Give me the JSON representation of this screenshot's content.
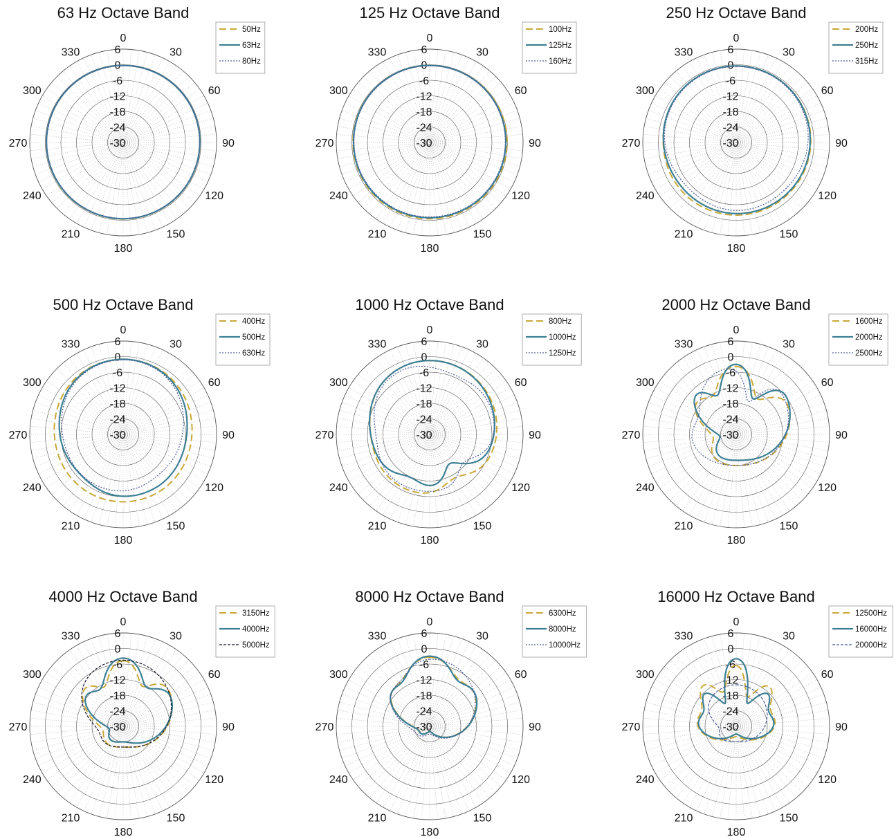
{
  "chart_data": [
    {
      "type": "polar",
      "title": "63 Hz Octave Band",
      "rlim": [
        -30,
        6
      ],
      "rticks": [
        "6",
        "0",
        "-6",
        "-12",
        "-18",
        "-24",
        "-30"
      ],
      "theta_ticks": [
        "0",
        "30",
        "60",
        "90",
        "120",
        "150",
        "180",
        "210",
        "240",
        "270",
        "300",
        "330"
      ],
      "theta_zero": "top",
      "theta_direction": "clockwise",
      "legend": "top-right",
      "series": [
        {
          "name": "50Hz",
          "color": "#c8a83a",
          "dash": "dash",
          "profile": {
            "base": -0.3,
            "rear": -0.5,
            "bumps": []
          }
        },
        {
          "name": "63Hz",
          "color": "#3d7f94",
          "dash": "solid",
          "profile": {
            "base": -0.3,
            "rear": -0.6,
            "bumps": []
          }
        },
        {
          "name": "80Hz",
          "color": "#4b5a9a",
          "dash": "dot",
          "profile": {
            "base": -0.3,
            "rear": -0.7,
            "bumps": []
          }
        }
      ]
    },
    {
      "type": "polar",
      "title": "125 Hz Octave Band",
      "rlim": [
        -30,
        6
      ],
      "rticks": [
        "6",
        "0",
        "-6",
        "-12",
        "-18",
        "-24",
        "-30"
      ],
      "theta_ticks": [
        "0",
        "30",
        "60",
        "90",
        "120",
        "150",
        "180",
        "210",
        "240",
        "270",
        "300",
        "330"
      ],
      "theta_zero": "top",
      "theta_direction": "clockwise",
      "legend": "top-right",
      "series": [
        {
          "name": "100Hz",
          "color": "#c8a83a",
          "dash": "dash",
          "profile": {
            "base": -0.3,
            "rear": -0.6,
            "bumps": [
              [
                80,
                0.3,
                30
              ]
            ]
          }
        },
        {
          "name": "125Hz",
          "color": "#3d7f94",
          "dash": "solid",
          "profile": {
            "base": -0.3,
            "rear": -1.0,
            "bumps": []
          }
        },
        {
          "name": "160Hz",
          "color": "#4b5a9a",
          "dash": "dot",
          "profile": {
            "base": -0.4,
            "rear": -1.3,
            "bumps": []
          }
        }
      ]
    },
    {
      "type": "polar",
      "title": "250 Hz Octave Band",
      "rlim": [
        -30,
        6
      ],
      "rticks": [
        "6",
        "0",
        "-6",
        "-12",
        "-18",
        "-24",
        "-30"
      ],
      "theta_ticks": [
        "0",
        "30",
        "60",
        "90",
        "120",
        "150",
        "180",
        "210",
        "240",
        "270",
        "300",
        "330"
      ],
      "theta_zero": "top",
      "theta_direction": "clockwise",
      "legend": "top-right",
      "series": [
        {
          "name": "200Hz",
          "color": "#c8a83a",
          "dash": "dash",
          "profile": {
            "base": -0.5,
            "rear": -2.0,
            "bumps": [
              [
                270,
                -0.6,
                25
              ]
            ]
          }
        },
        {
          "name": "250Hz",
          "color": "#3d7f94",
          "dash": "solid",
          "profile": {
            "base": -0.5,
            "rear": -2.5,
            "bumps": [
              [
                240,
                -0.8,
                30
              ]
            ]
          }
        },
        {
          "name": "315Hz",
          "color": "#4b5a9a",
          "dash": "dot",
          "profile": {
            "base": -0.7,
            "rear": -3.5,
            "bumps": [
              [
                230,
                -1.5,
                25
              ],
              [
                130,
                -0.8,
                25
              ]
            ]
          }
        }
      ]
    },
    {
      "type": "polar",
      "title": "500 Hz Octave Band",
      "rlim": [
        -30,
        6
      ],
      "rticks": [
        "6",
        "0",
        "-6",
        "-12",
        "-18",
        "-24",
        "-30"
      ],
      "theta_ticks": [
        "0",
        "30",
        "60",
        "90",
        "120",
        "150",
        "180",
        "210",
        "240",
        "270",
        "300",
        "330"
      ],
      "theta_zero": "top",
      "theta_direction": "clockwise",
      "legend": "top-right",
      "series": [
        {
          "name": "400Hz",
          "color": "#c8a83a",
          "dash": "dash",
          "profile": {
            "base": -1.0,
            "rear": -4.0,
            "bumps": [
              [
                90,
                -1.0,
                30
              ],
              [
                270,
                -1.0,
                30
              ]
            ]
          }
        },
        {
          "name": "500Hz",
          "color": "#3d7f94",
          "dash": "solid",
          "profile": {
            "base": -1.0,
            "rear": -6.0,
            "bumps": [
              [
                90,
                -2.0,
                30
              ],
              [
                270,
                -2.0,
                30
              ],
              [
                225,
                -1.5,
                20
              ]
            ]
          }
        },
        {
          "name": "630Hz",
          "color": "#4b5a9a",
          "dash": "dot",
          "profile": {
            "base": -1.2,
            "rear": -8.0,
            "bumps": [
              [
                90,
                -2.5,
                30
              ],
              [
                270,
                -2.0,
                30
              ],
              [
                140,
                -1.5,
                20
              ]
            ]
          }
        }
      ]
    },
    {
      "type": "polar",
      "title": "1000 Hz Octave Band",
      "rlim": [
        -30,
        6
      ],
      "rticks": [
        "6",
        "0",
        "-6",
        "-12",
        "-18",
        "-24",
        "-30"
      ],
      "theta_ticks": [
        "0",
        "30",
        "60",
        "90",
        "120",
        "150",
        "180",
        "210",
        "240",
        "270",
        "300",
        "330"
      ],
      "theta_zero": "top",
      "theta_direction": "clockwise",
      "legend": "top-right",
      "series": [
        {
          "name": "800Hz",
          "color": "#c8a83a",
          "dash": "dash",
          "profile": {
            "base": -1.5,
            "rear": -7.0,
            "bumps": [
              [
                270,
                -3.0,
                30
              ],
              [
                150,
                -4.0,
                15
              ]
            ]
          }
        },
        {
          "name": "1000Hz",
          "color": "#3d7f94",
          "dash": "solid",
          "profile": {
            "base": -1.5,
            "rear": -9.0,
            "bumps": [
              [
                270,
                -2.0,
                30
              ],
              [
                145,
                -8.0,
                15
              ],
              [
                205,
                -3.0,
                15
              ]
            ]
          }
        },
        {
          "name": "1250Hz",
          "color": "#4b5a9a",
          "dash": "dot",
          "profile": {
            "base": -2.5,
            "rear": -8.0,
            "bumps": [
              [
                20,
                -2.5,
                20
              ],
              [
                270,
                -4.0,
                25
              ],
              [
                130,
                -6.0,
                15
              ]
            ]
          }
        }
      ]
    },
    {
      "type": "polar",
      "title": "2000 Hz Octave Band",
      "rlim": [
        -30,
        6
      ],
      "rticks": [
        "6",
        "0",
        "-6",
        "-12",
        "-18",
        "-24",
        "-30"
      ],
      "theta_ticks": [
        "0",
        "30",
        "60",
        "90",
        "120",
        "150",
        "180",
        "210",
        "240",
        "270",
        "300",
        "330"
      ],
      "theta_zero": "top",
      "theta_direction": "clockwise",
      "legend": "top-right",
      "series": [
        {
          "name": "1600Hz",
          "color": "#c8a83a",
          "dash": "dash",
          "profile": {
            "base": -3.0,
            "rear": -18.0,
            "bumps": [
              [
                30,
                -10.0,
                12
              ],
              [
                330,
                -8.0,
                12
              ],
              [
                270,
                -10.0,
                25
              ]
            ]
          }
        },
        {
          "name": "2000Hz",
          "color": "#3d7f94",
          "dash": "solid",
          "profile": {
            "base": -2.0,
            "rear": -20.0,
            "bumps": [
              [
                25,
                -12.0,
                10
              ],
              [
                335,
                -10.0,
                10
              ],
              [
                270,
                -12.0,
                25
              ]
            ]
          }
        },
        {
          "name": "2500Hz",
          "color": "#4b5a9a",
          "dash": "dot",
          "profile": {
            "base": -4.0,
            "rear": -18.0,
            "bumps": [
              [
                20,
                -12.0,
                10
              ],
              [
                300,
                -6.0,
                20
              ]
            ]
          }
        }
      ]
    },
    {
      "type": "polar",
      "title": "4000 Hz Octave Band",
      "rlim": [
        -30,
        6
      ],
      "rticks": [
        "6",
        "0",
        "-6",
        "-12",
        "-18",
        "-24",
        "-30"
      ],
      "theta_ticks": [
        "0",
        "30",
        "60",
        "90",
        "120",
        "150",
        "180",
        "210",
        "240",
        "270",
        "300",
        "330"
      ],
      "theta_zero": "top",
      "theta_direction": "clockwise",
      "legend": "top-right",
      "series": [
        {
          "name": "3150Hz",
          "color": "#c8a83a",
          "dash": "dash",
          "profile": {
            "base": -4.0,
            "rear": -22.0,
            "bumps": [
              [
                25,
                -8.0,
                10
              ],
              [
                335,
                -8.0,
                10
              ],
              [
                270,
                -8.0,
                25
              ]
            ]
          }
        },
        {
          "name": "4000Hz",
          "color": "#3d7f94",
          "dash": "solid",
          "profile": {
            "base": -3.0,
            "rear": -24.0,
            "bumps": [
              [
                30,
                -8.0,
                12
              ],
              [
                330,
                -8.0,
                12
              ],
              [
                270,
                -10.0,
                25
              ]
            ]
          }
        },
        {
          "name": "5000Hz",
          "color": "#1a1a2e",
          "dash": "dash-fine",
          "profile": {
            "base": -4.5,
            "rear": -22.0,
            "bumps": [
              [
                270,
                -6.0,
                25
              ]
            ]
          }
        }
      ]
    },
    {
      "type": "polar",
      "title": "8000 Hz Octave Band",
      "rlim": [
        -30,
        6
      ],
      "rticks": [
        "6",
        "0",
        "-6",
        "-12",
        "-18",
        "-24",
        "-30"
      ],
      "theta_ticks": [
        "0",
        "30",
        "60",
        "90",
        "120",
        "150",
        "180",
        "210",
        "240",
        "270",
        "300",
        "330"
      ],
      "theta_zero": "top",
      "theta_direction": "clockwise",
      "legend": "top-right",
      "series": [
        {
          "name": "6300Hz",
          "color": "#c8a83a",
          "dash": "dash",
          "profile": {
            "base": -3.0,
            "rear": -28.0,
            "bumps": [
              [
                30,
                -4.0,
                12
              ],
              [
                330,
                -4.0,
                12
              ],
              [
                270,
                -8.0,
                25
              ]
            ]
          }
        },
        {
          "name": "8000Hz",
          "color": "#3d7f94",
          "dash": "solid",
          "profile": {
            "base": -2.5,
            "rear": -28.0,
            "bumps": [
              [
                30,
                -5.0,
                12
              ],
              [
                330,
                -5.0,
                12
              ],
              [
                270,
                -8.0,
                25
              ]
            ]
          }
        },
        {
          "name": "10000Hz",
          "color": "#4b5a9a",
          "dash": "dot",
          "profile": {
            "base": -4.0,
            "rear": -27.0,
            "bumps": [
              [
                330,
                -3.0,
                12
              ],
              [
                270,
                -6.0,
                25
              ]
            ]
          }
        }
      ]
    },
    {
      "type": "polar",
      "title": "16000 Hz Octave Band",
      "rlim": [
        -30,
        6
      ],
      "rticks": [
        "6",
        "0",
        "-6",
        "-12",
        "-18",
        "-24",
        "-30"
      ],
      "theta_ticks": [
        "0",
        "30",
        "60",
        "90",
        "120",
        "150",
        "180",
        "210",
        "240",
        "270",
        "300",
        "330"
      ],
      "theta_zero": "top",
      "theta_direction": "clockwise",
      "legend": "top-right",
      "series": [
        {
          "name": "12500Hz",
          "color": "#c8a83a",
          "dash": "dash",
          "profile": {
            "base": -3.0,
            "rear": -26.0,
            "bumps": [
              [
                20,
                -14.0,
                10
              ],
              [
                340,
                -12.0,
                10
              ],
              [
                300,
                -6.0,
                15
              ],
              [
                60,
                -6.0,
                15
              ]
            ]
          }
        },
        {
          "name": "16000Hz",
          "color": "#3d7f94",
          "dash": "solid",
          "profile": {
            "base": -2.5,
            "rear": -27.0,
            "bumps": [
              [
                25,
                -16.0,
                10
              ],
              [
                335,
                -16.0,
                10
              ],
              [
                300,
                -7.0,
                15
              ],
              [
                60,
                -7.0,
                15
              ]
            ]
          }
        },
        {
          "name": "20000Hz",
          "color": "#4b5a9a",
          "dash": "dash-fine",
          "profile": {
            "base": -14.0,
            "rear": -24.0,
            "bumps": [
              [
                270,
                -4.0,
                20
              ]
            ]
          }
        }
      ]
    }
  ]
}
